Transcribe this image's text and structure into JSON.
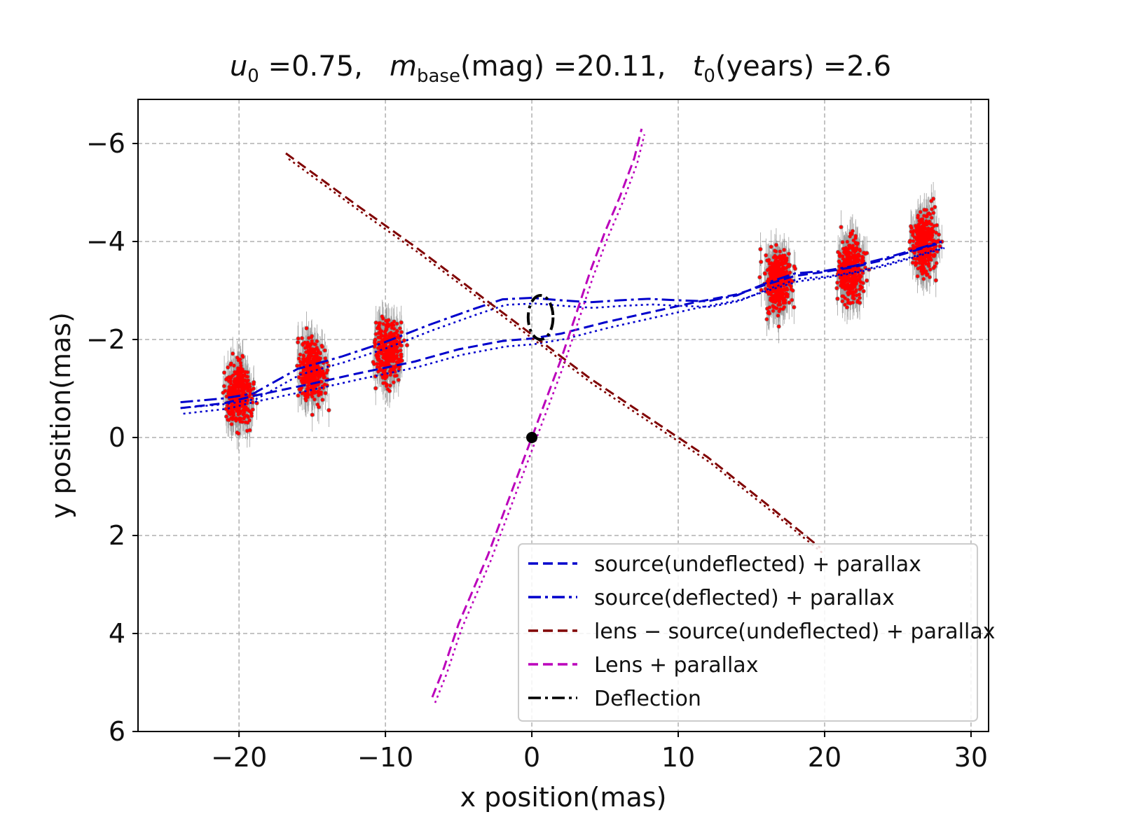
{
  "chart_data": {
    "type": "line",
    "title": {
      "u0_symbol": "u",
      "u0_sub": "0",
      "u0_text": " =0.75,",
      "m_symbol": "m",
      "m_sub": "base",
      "m_text": "(mag) =20.11,",
      "t_symbol": "t",
      "t_sub": "0",
      "t_text": "(years) =2.6"
    },
    "xlabel": "x position(mas)",
    "ylabel": "y position(mas)",
    "xlim": [
      -26.9,
      31.2
    ],
    "ylim": [
      6.0,
      -6.9
    ],
    "y_inverted": true,
    "xticks": [
      -20,
      -10,
      0,
      10,
      20,
      30
    ],
    "xtick_labels": [
      "−20",
      "−10",
      "0",
      "10",
      "20",
      "30"
    ],
    "yticks": [
      -6,
      -4,
      -2,
      0,
      2,
      4,
      6
    ],
    "ytick_labels": [
      "−6",
      "−4",
      "−2",
      "0",
      "2",
      "4",
      "6"
    ],
    "grid": true,
    "legend_position": "lower-right",
    "series": [
      {
        "name": "source(undeflected) + parallax",
        "color": "#0000cc",
        "style": "dashed",
        "x": [
          -24,
          -21,
          -19,
          -15,
          -12,
          -8,
          -5,
          -2,
          0,
          2,
          5,
          8,
          11,
          14,
          16,
          18,
          20,
          22,
          24,
          26,
          28
        ],
        "y": [
          -0.6,
          -0.7,
          -0.85,
          -1.1,
          -1.3,
          -1.55,
          -1.8,
          -1.97,
          -2.02,
          -2.12,
          -2.35,
          -2.55,
          -2.75,
          -2.92,
          -3.12,
          -3.3,
          -3.38,
          -3.48,
          -3.62,
          -3.8,
          -3.98
        ]
      },
      {
        "name": "source(deflected) + parallax",
        "color": "#0000cc",
        "style": "dashdot",
        "x": [
          -24,
          -21,
          -19,
          -16,
          -13,
          -10,
          -7,
          -4,
          -2,
          0,
          2,
          4,
          6,
          8,
          10,
          12,
          14,
          16,
          18,
          20,
          22,
          24,
          26,
          28
        ],
        "y": [
          -0.72,
          -0.8,
          -0.9,
          -1.4,
          -1.65,
          -1.95,
          -2.3,
          -2.62,
          -2.82,
          -2.85,
          -2.8,
          -2.76,
          -2.8,
          -2.83,
          -2.8,
          -2.78,
          -2.9,
          -3.15,
          -3.35,
          -3.4,
          -3.5,
          -3.65,
          -3.82,
          -4.0
        ]
      },
      {
        "name": "lens − source(undeflected) + parallax",
        "color": "#800000",
        "style": "dashed",
        "x": [
          -16.8,
          -12,
          -8,
          -4,
          0,
          4,
          8,
          12,
          16,
          19.7
        ],
        "y": [
          -5.8,
          -4.75,
          -3.9,
          -3.0,
          -2.1,
          -1.2,
          -0.4,
          0.4,
          1.35,
          2.25
        ]
      },
      {
        "name": "Lens + parallax",
        "color": "#bb00bb",
        "style": "dashed",
        "x": [
          -6.8,
          -6.0,
          -5.0,
          -4.0,
          -3.0,
          -2.0,
          -1.0,
          0.0,
          1.0,
          2.0,
          3.0,
          4.0,
          5.0,
          6.0,
          7.0,
          7.5
        ],
        "y": [
          5.3,
          4.7,
          3.8,
          3.1,
          2.4,
          1.6,
          0.8,
          0.0,
          -0.8,
          -1.6,
          -2.5,
          -3.4,
          -4.2,
          -4.9,
          -5.7,
          -6.3
        ]
      },
      {
        "name": "Deflection",
        "color": "#000000",
        "style": "dashdot",
        "ellipse": {
          "cx": 0.6,
          "cy": -2.45,
          "rx": 0.85,
          "ry": 0.45
        }
      }
    ],
    "observation_clusters": {
      "color": "#ff0000",
      "errorbar_color": "#888888",
      "centers_x": [
        -20.0,
        -15.0,
        -9.8,
        16.8,
        21.8,
        26.8
      ],
      "centers_y": [
        -0.85,
        -1.35,
        -1.75,
        -3.2,
        -3.4,
        -4.0
      ]
    },
    "origin_point": {
      "x": 0,
      "y": 0,
      "color": "#000000"
    }
  }
}
